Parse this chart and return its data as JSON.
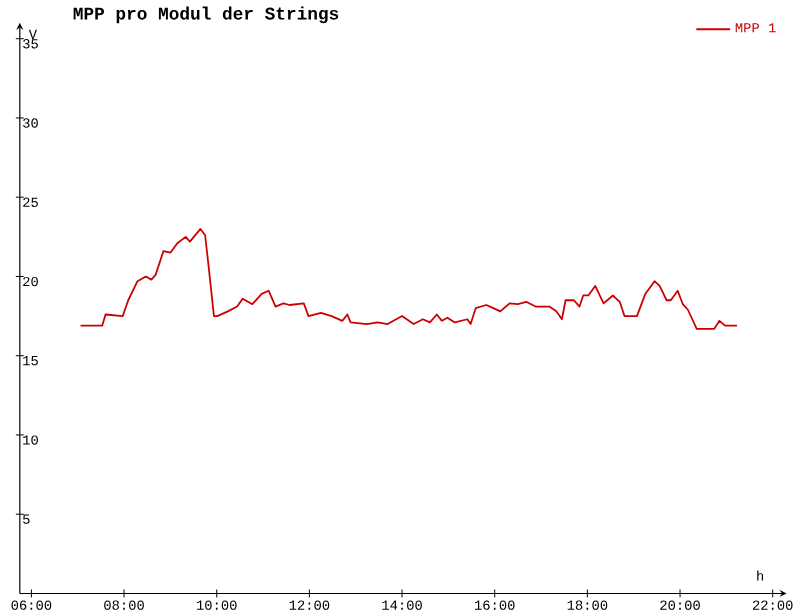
{
  "chart_data": {
    "type": "line",
    "title": "MPP pro Modul der Strings",
    "xlabel": "h",
    "ylabel": "V",
    "x": [
      7.06,
      7.53,
      7.6,
      7.97,
      8.09,
      8.29,
      8.47,
      8.59,
      8.68,
      8.85,
      9.0,
      9.15,
      9.33,
      9.42,
      9.65,
      9.75,
      9.83,
      9.94,
      10.01,
      10.24,
      10.44,
      10.56,
      10.77,
      10.97,
      11.12,
      11.27,
      11.44,
      11.57,
      11.88,
      11.98,
      12.25,
      12.48,
      12.71,
      12.82,
      12.89,
      13.24,
      13.47,
      13.69,
      14.0,
      14.25,
      14.45,
      14.6,
      14.75,
      14.86,
      14.98,
      15.14,
      15.41,
      15.48,
      15.59,
      15.82,
      15.97,
      16.12,
      16.32,
      16.5,
      16.68,
      16.88,
      17.18,
      17.33,
      17.45,
      17.53,
      17.71,
      17.83,
      17.91,
      18.02,
      18.17,
      18.35,
      18.55,
      18.7,
      18.8,
      19.07,
      19.25,
      19.45,
      19.56,
      19.71,
      19.8,
      19.95,
      20.06,
      20.17,
      20.36,
      20.74,
      20.85,
      20.97,
      21.23
    ],
    "series": [
      {
        "name": "MPP 1",
        "color": "#cc0000",
        "values": [
          16.9,
          16.9,
          17.6,
          17.5,
          18.5,
          19.7,
          20,
          19.8,
          20.1,
          21.6,
          21.5,
          22.1,
          22.5,
          22.2,
          23.0,
          22.6,
          20.5,
          17.5,
          17.5,
          17.8,
          18.1,
          18.6,
          18.25,
          18.9,
          19.1,
          18.1,
          18.3,
          18.2,
          18.3,
          17.5,
          17.7,
          17.5,
          17.2,
          17.6,
          17.1,
          17.0,
          17.1,
          17.0,
          17.5,
          17.0,
          17.3,
          17.1,
          17.6,
          17.2,
          17.4,
          17.1,
          17.3,
          17.0,
          18.0,
          18.2,
          18.0,
          17.8,
          18.3,
          18.25,
          18.4,
          18.1,
          18.1,
          17.8,
          17.3,
          18.5,
          18.5,
          18.1,
          18.8,
          18.8,
          19.4,
          18.3,
          18.8,
          18.4,
          17.5,
          17.5,
          18.9,
          19.7,
          19.4,
          18.5,
          18.5,
          19.1,
          18.25,
          17.9,
          16.7,
          16.7,
          17.2,
          16.9,
          16.9
        ]
      }
    ],
    "xlim": [
      5.75,
      22.3
    ],
    "ylim": [
      0,
      36
    ],
    "xticks": [
      {
        "value": 6,
        "label": "06:00"
      },
      {
        "value": 8,
        "label": "08:00"
      },
      {
        "value": 10,
        "label": "10:00"
      },
      {
        "value": 12,
        "label": "12:00"
      },
      {
        "value": 14,
        "label": "14:00"
      },
      {
        "value": 16,
        "label": "16:00"
      },
      {
        "value": 18,
        "label": "18:00"
      },
      {
        "value": 20,
        "label": "20:00"
      },
      {
        "value": 22,
        "label": "22:00"
      }
    ],
    "yticks": [
      5,
      10,
      15,
      20,
      25,
      30,
      35
    ],
    "legend": "top right",
    "marker": "none",
    "line_style": "solid"
  }
}
